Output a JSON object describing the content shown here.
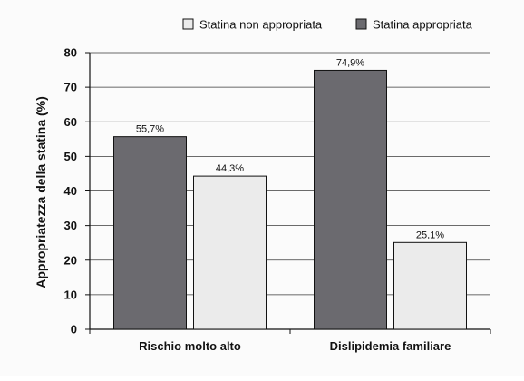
{
  "chart_data": {
    "type": "bar",
    "categories": [
      "Rischio molto alto",
      "Dislipidemia familiare"
    ],
    "series": [
      {
        "name": "Statina appropriata",
        "color": "#6b6a6f",
        "values": [
          55.7,
          74.9
        ],
        "labels": [
          "55,7%",
          "74,9%"
        ]
      },
      {
        "name": "Statina non appropriata",
        "color": "#ebebeb",
        "values": [
          44.3,
          25.1
        ],
        "labels": [
          "44,3%",
          "25,1%"
        ]
      }
    ],
    "legend_order": [
      "Statina non appropriata",
      "Statina appropriata"
    ],
    "ylabel": "Appropriatezza della statina (%)",
    "xlabel": "",
    "title": "",
    "ylim": [
      0,
      80
    ],
    "yticks": [
      0,
      10,
      20,
      30,
      40,
      50,
      60,
      70,
      80
    ],
    "grid": true,
    "legend_position": "top-right"
  }
}
